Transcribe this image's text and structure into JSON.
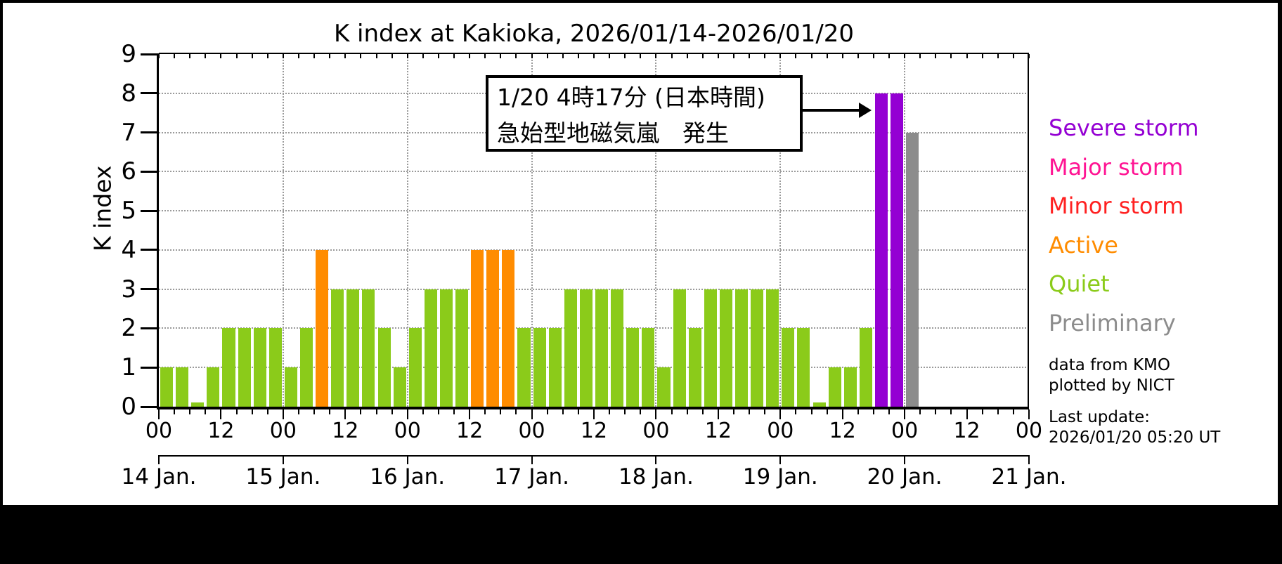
{
  "page": {
    "background_color": "#000000",
    "panel_color": "#FFFFFF"
  },
  "chart_data": {
    "type": "bar",
    "title": "K index at Kakioka, 2026/01/14-2026/01/20",
    "ylabel": "K index",
    "ylim": [
      0,
      9
    ],
    "y_tick_labels": [
      "0",
      "1",
      "2",
      "3",
      "4",
      "5",
      "6",
      "7",
      "8",
      "9"
    ],
    "hour_tick_labels": [
      "00",
      "12",
      "00",
      "12",
      "00",
      "12",
      "00",
      "12",
      "00",
      "12",
      "00",
      "12",
      "00",
      "12",
      "00"
    ],
    "grid": "horizontal dotted lines at K=1..8, vertical dotted lines at each day start",
    "legend_position": "right",
    "slots_per_day": 8,
    "hours_per_slot": 3,
    "status_colors": {
      "quiet": "#8BCB1A",
      "active": "#FF8C00",
      "minor": "#FF2121",
      "major": "#FF1493",
      "severe": "#9400D3",
      "preliminary": "#8C8C8C"
    },
    "days": [
      {
        "label": "14 Jan.",
        "values": [
          1,
          1,
          0,
          1,
          2,
          2,
          2,
          2
        ],
        "status": [
          "quiet",
          "quiet",
          "quiet",
          "quiet",
          "quiet",
          "quiet",
          "quiet",
          "quiet"
        ]
      },
      {
        "label": "15 Jan.",
        "values": [
          1,
          2,
          4,
          3,
          3,
          3,
          2,
          1
        ],
        "status": [
          "quiet",
          "quiet",
          "active",
          "quiet",
          "quiet",
          "quiet",
          "quiet",
          "quiet"
        ]
      },
      {
        "label": "16 Jan.",
        "values": [
          2,
          3,
          3,
          3,
          4,
          4,
          4,
          2
        ],
        "status": [
          "quiet",
          "quiet",
          "quiet",
          "quiet",
          "active",
          "active",
          "active",
          "quiet"
        ]
      },
      {
        "label": "17 Jan.",
        "values": [
          2,
          2,
          3,
          3,
          3,
          3,
          2,
          2
        ],
        "status": [
          "quiet",
          "quiet",
          "quiet",
          "quiet",
          "quiet",
          "quiet",
          "quiet",
          "quiet"
        ]
      },
      {
        "label": "18 Jan.",
        "values": [
          1,
          3,
          2,
          3,
          3,
          3,
          3,
          3
        ],
        "status": [
          "quiet",
          "quiet",
          "quiet",
          "quiet",
          "quiet",
          "quiet",
          "quiet",
          "quiet"
        ]
      },
      {
        "label": "19 Jan.",
        "values": [
          2,
          2,
          0,
          1,
          1,
          2,
          8,
          8
        ],
        "status": [
          "quiet",
          "quiet",
          "quiet",
          "quiet",
          "quiet",
          "quiet",
          "severe",
          "severe"
        ]
      },
      {
        "label": "20 Jan.",
        "values": [
          7,
          null,
          null,
          null,
          null,
          null,
          null,
          null
        ],
        "status": [
          "preliminary",
          null,
          null,
          null,
          null,
          null,
          null,
          null
        ]
      },
      {
        "label": "21 Jan.",
        "values": [],
        "status": []
      }
    ]
  },
  "annotation": {
    "line1": "1/20 4時17分 (日本時間)",
    "line2": "急始型地磁気嵐　発生"
  },
  "legend": {
    "items": [
      {
        "label": "Severe storm",
        "color": "#9400D3"
      },
      {
        "label": "Major storm",
        "color": "#FF1493"
      },
      {
        "label": "Minor storm",
        "color": "#FF2121"
      },
      {
        "label": "Active",
        "color": "#FF8C00"
      },
      {
        "label": "Quiet",
        "color": "#8BCB1A"
      },
      {
        "label": "Preliminary",
        "color": "#8C8C8C"
      }
    ]
  },
  "notes": {
    "credit_line1": "data from KMO",
    "credit_line2": "plotted by NICT",
    "last_update_label": "Last update:",
    "last_update_value": "2026/01/20 05:20 UT"
  }
}
